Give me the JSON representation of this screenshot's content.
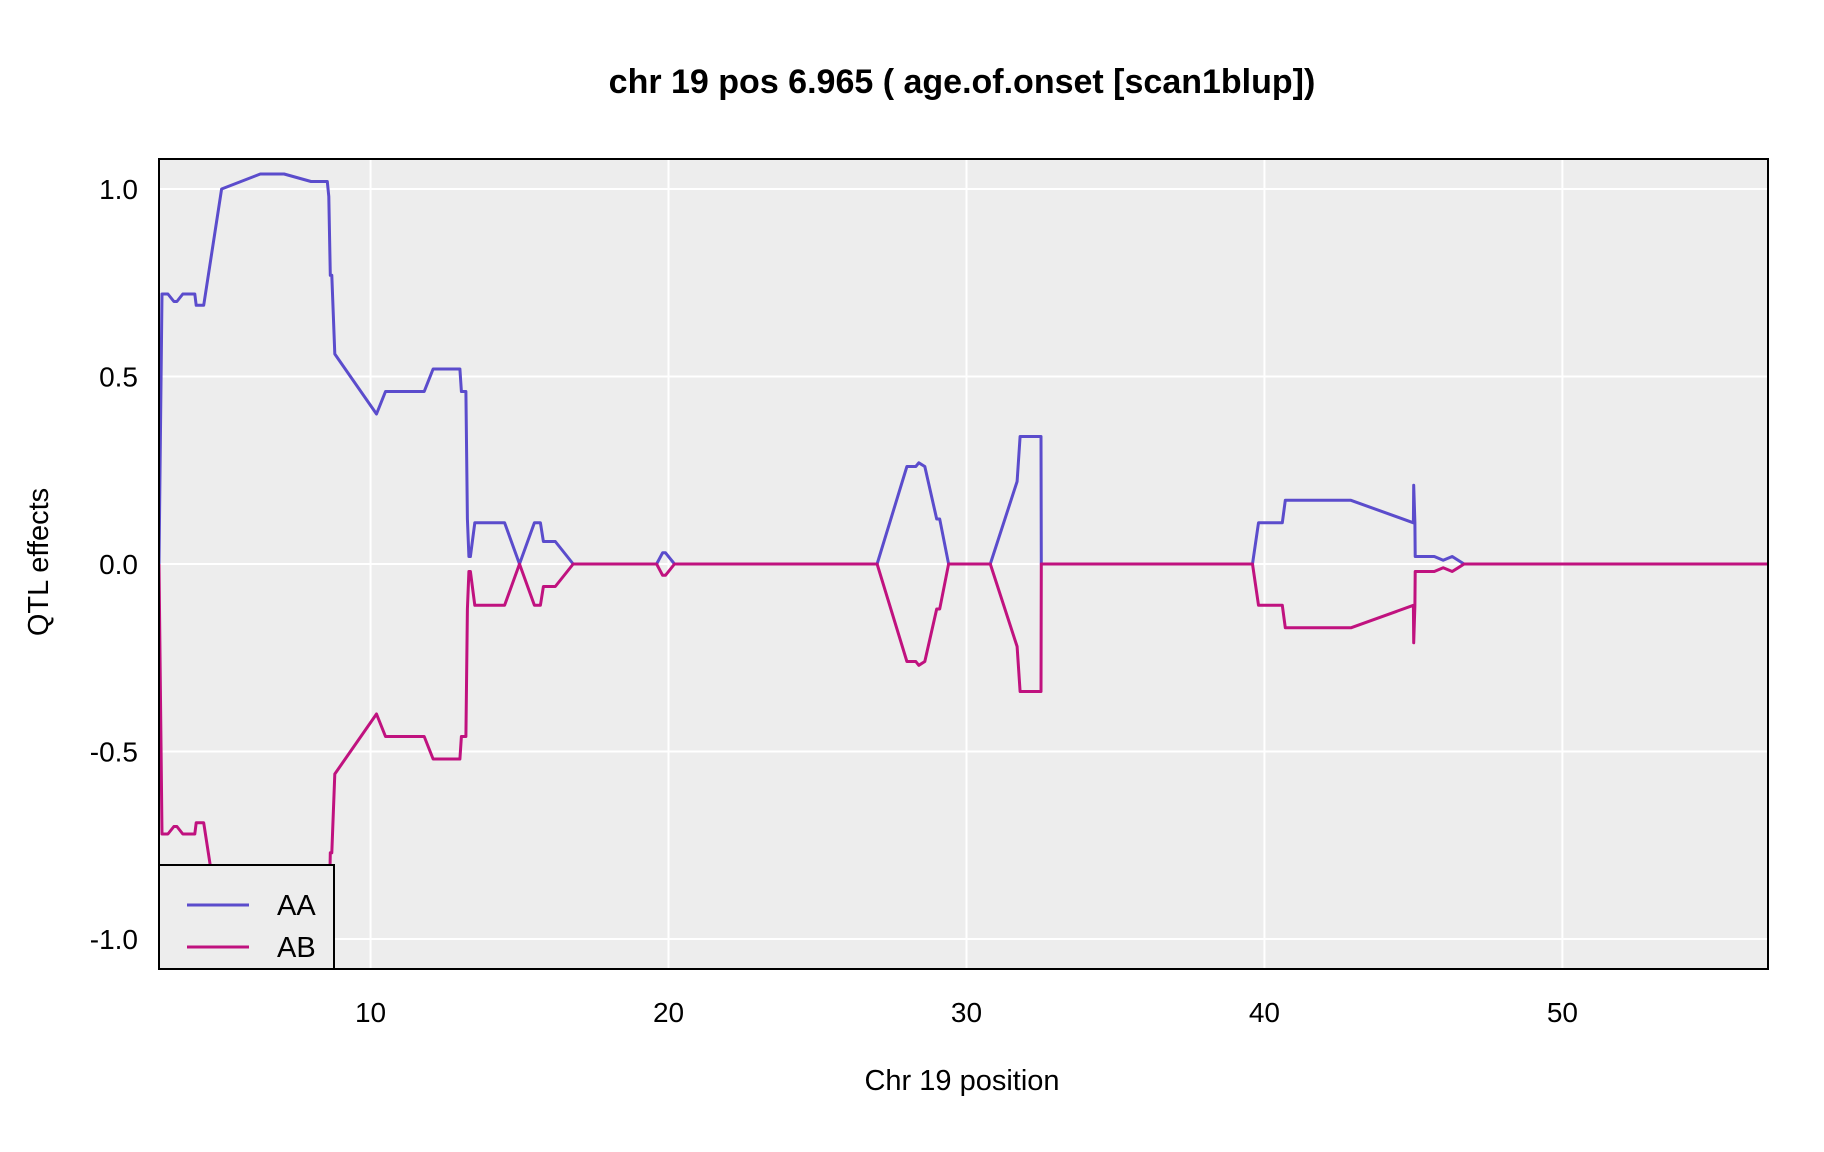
{
  "chart_data": {
    "type": "line",
    "title": "chr 19 pos 6.965 ( age.of.onset  [scan1blup])",
    "xlabel": "Chr 19 position",
    "ylabel": "QTL effects",
    "xlim": [
      2.9,
      56.9
    ],
    "ylim": [
      -1.08,
      1.08
    ],
    "x_ticks": [
      10,
      20,
      30,
      40,
      50
    ],
    "x_tick_labels": [
      "10",
      "20",
      "30",
      "40",
      "50"
    ],
    "y_ticks": [
      1.0,
      0.5,
      0.0,
      -0.5,
      -1.0
    ],
    "y_tick_labels": [
      "1.0",
      "0.5",
      "0.0",
      "-0.5",
      "-1.0"
    ],
    "grid": true,
    "legend": {
      "position": "bottom-left",
      "entries": [
        "AA",
        "AB"
      ]
    },
    "colors": {
      "AA": "#5b4ccc",
      "AB": "#c0127f",
      "panel_bg": "#ededed",
      "grid": "#ffffff"
    },
    "series": [
      {
        "name": "AA",
        "x": [
          2.9,
          3.0,
          3.2,
          3.4,
          3.5,
          3.7,
          3.8,
          4.1,
          4.15,
          4.3,
          4.4,
          5.0,
          6.3,
          6.8,
          7.1,
          8.0,
          8.05,
          8.2,
          8.5,
          8.55,
          8.6,
          8.65,
          8.7,
          8.8,
          10.2,
          10.5,
          11.8,
          12.1,
          13.0,
          13.05,
          13.2,
          13.25,
          13.3,
          13.35,
          13.5,
          14.0,
          14.3,
          14.5,
          15.0,
          15.5,
          15.7,
          15.8,
          16.2,
          16.8,
          19.6,
          19.8,
          19.9,
          20.2,
          27.0,
          28.0,
          28.3,
          28.4,
          28.6,
          29.0,
          29.1,
          29.4,
          30.8,
          31.7,
          31.8,
          32.5,
          32.51,
          39.6,
          39.8,
          40.6,
          40.7,
          42.9,
          45.0,
          45.01,
          45.05,
          45.06,
          45.1,
          45.7,
          46.0,
          46.3,
          46.5,
          46.7,
          56.9
        ],
        "values": [
          0.0,
          0.72,
          0.72,
          0.7,
          0.7,
          0.72,
          0.72,
          0.72,
          0.69,
          0.69,
          0.69,
          1.0,
          1.04,
          1.04,
          1.04,
          1.02,
          1.02,
          1.02,
          1.02,
          1.02,
          0.98,
          0.77,
          0.77,
          0.56,
          0.4,
          0.46,
          0.46,
          0.52,
          0.52,
          0.46,
          0.46,
          0.12,
          0.02,
          0.02,
          0.11,
          0.11,
          0.11,
          0.11,
          0.0,
          0.11,
          0.11,
          0.06,
          0.06,
          0.0,
          0.0,
          0.03,
          0.03,
          0.0,
          0.0,
          0.26,
          0.26,
          0.27,
          0.26,
          0.12,
          0.12,
          0.0,
          0.0,
          0.22,
          0.34,
          0.34,
          0.0,
          0.0,
          0.11,
          0.11,
          0.17,
          0.17,
          0.11,
          0.21,
          0.11,
          0.02,
          0.02,
          0.02,
          0.01,
          0.02,
          0.01,
          0.0,
          0.0
        ]
      },
      {
        "name": "AB",
        "x": [
          2.9,
          3.0,
          3.2,
          3.4,
          3.5,
          3.7,
          3.8,
          4.1,
          4.15,
          4.3,
          4.4,
          5.0,
          6.3,
          6.8,
          7.1,
          8.0,
          8.05,
          8.2,
          8.5,
          8.55,
          8.6,
          8.65,
          8.7,
          8.8,
          10.2,
          10.5,
          11.8,
          12.1,
          13.0,
          13.05,
          13.2,
          13.25,
          13.3,
          13.35,
          13.5,
          14.0,
          14.3,
          14.5,
          15.0,
          15.5,
          15.7,
          15.8,
          16.2,
          16.8,
          19.6,
          19.8,
          19.9,
          20.2,
          27.0,
          28.0,
          28.3,
          28.4,
          28.6,
          29.0,
          29.1,
          29.4,
          30.8,
          31.7,
          31.8,
          32.5,
          32.51,
          39.6,
          39.8,
          40.6,
          40.7,
          42.9,
          45.0,
          45.01,
          45.05,
          45.06,
          45.1,
          45.7,
          46.0,
          46.3,
          46.5,
          46.7,
          56.9
        ],
        "values": [
          0.0,
          -0.72,
          -0.72,
          -0.7,
          -0.7,
          -0.72,
          -0.72,
          -0.72,
          -0.69,
          -0.69,
          -0.69,
          -1.0,
          -1.04,
          -1.04,
          -1.04,
          -1.02,
          -1.02,
          -1.02,
          -1.02,
          -1.02,
          -0.98,
          -0.77,
          -0.77,
          -0.56,
          -0.4,
          -0.46,
          -0.46,
          -0.52,
          -0.52,
          -0.46,
          -0.46,
          -0.12,
          -0.02,
          -0.02,
          -0.11,
          -0.11,
          -0.11,
          -0.11,
          0.0,
          -0.11,
          -0.11,
          -0.06,
          -0.06,
          0.0,
          0.0,
          -0.03,
          -0.03,
          0.0,
          0.0,
          -0.26,
          -0.26,
          -0.27,
          -0.26,
          -0.12,
          -0.12,
          0.0,
          0.0,
          -0.22,
          -0.34,
          -0.34,
          0.0,
          0.0,
          -0.11,
          -0.11,
          -0.17,
          -0.17,
          -0.11,
          -0.21,
          -0.11,
          -0.02,
          -0.02,
          -0.02,
          -0.01,
          -0.02,
          -0.01,
          0.0,
          0.0
        ]
      }
    ]
  }
}
